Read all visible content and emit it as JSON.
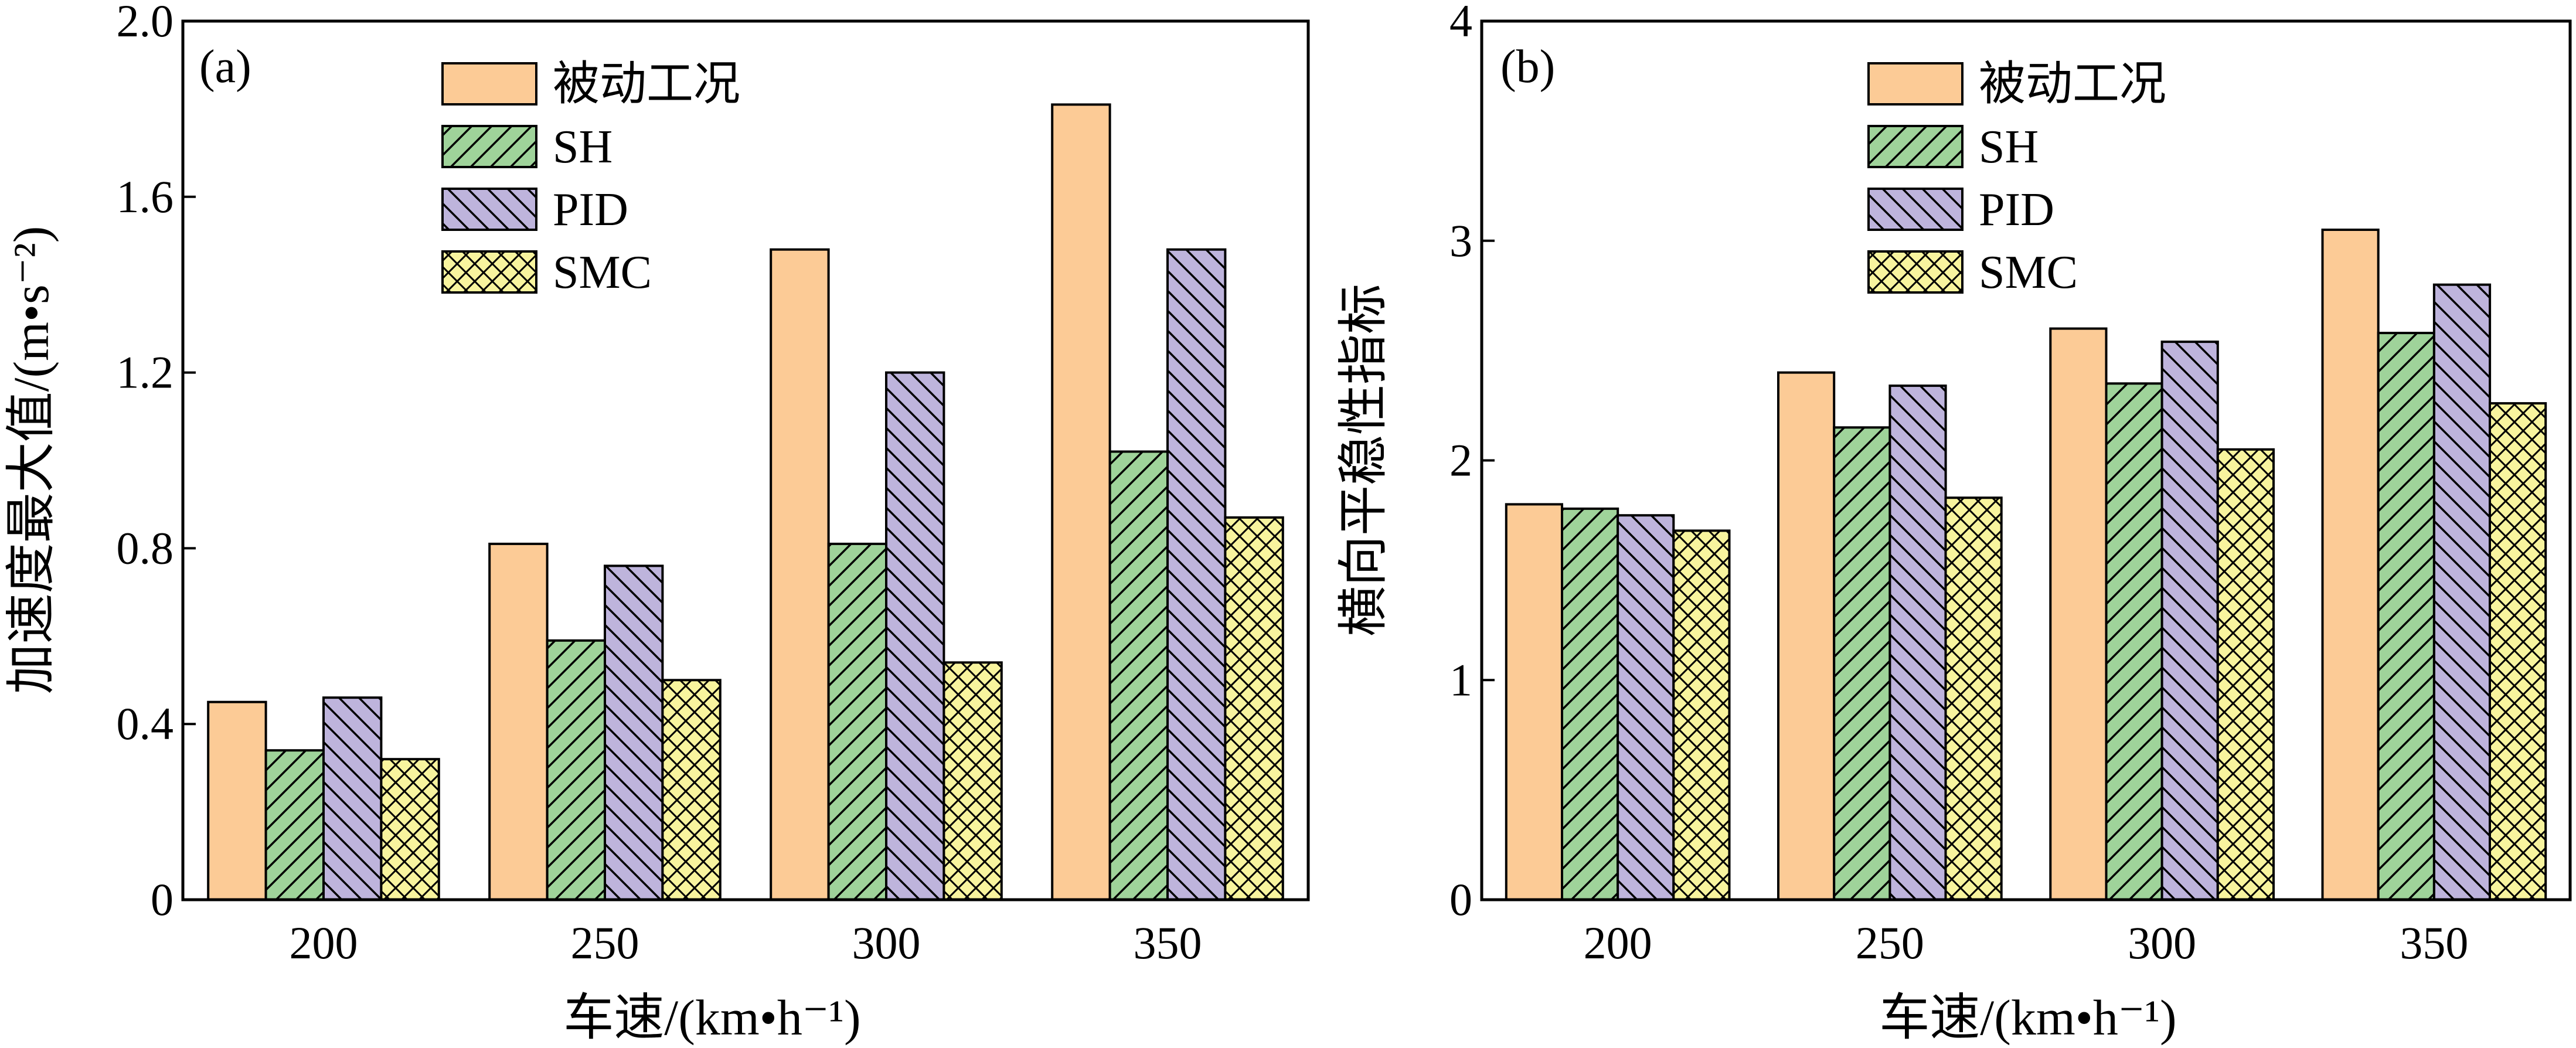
{
  "chart_data": [
    {
      "panel_label": "(a)",
      "type": "bar",
      "categories": [
        "200",
        "250",
        "300",
        "350"
      ],
      "xlabel": "车速/(km•h⁻¹)",
      "ylabel": "加速度最大值/(m•s⁻²)",
      "ylim": [
        0,
        2.0
      ],
      "yticks": [
        "0",
        "0.4",
        "0.8",
        "1.2",
        "1.6",
        "2.0"
      ],
      "ytick_values": [
        0,
        0.4,
        0.8,
        1.2,
        1.6,
        2.0
      ],
      "legend_position": "top-center",
      "series": [
        {
          "name": "被动工况",
          "values": [
            0.45,
            0.81,
            1.48,
            1.81
          ]
        },
        {
          "name": "SH",
          "values": [
            0.34,
            0.59,
            0.81,
            1.02
          ]
        },
        {
          "name": "PID",
          "values": [
            0.46,
            0.76,
            1.2,
            1.48
          ]
        },
        {
          "name": "SMC",
          "values": [
            0.32,
            0.5,
            0.54,
            0.87
          ]
        }
      ]
    },
    {
      "panel_label": "(b)",
      "type": "bar",
      "categories": [
        "200",
        "250",
        "300",
        "350"
      ],
      "xlabel": "车速/(km•h⁻¹)",
      "ylabel": "横向平稳性指标",
      "ylim": [
        0,
        4
      ],
      "yticks": [
        "0",
        "1",
        "2",
        "3",
        "4"
      ],
      "ytick_values": [
        0,
        1,
        2,
        3,
        4
      ],
      "legend_position": "top-center",
      "series": [
        {
          "name": "被动工况",
          "values": [
            1.8,
            2.4,
            2.6,
            3.05
          ]
        },
        {
          "name": "SH",
          "values": [
            1.78,
            2.15,
            2.35,
            2.58
          ]
        },
        {
          "name": "PID",
          "values": [
            1.75,
            2.34,
            2.54,
            2.8
          ]
        },
        {
          "name": "SMC",
          "values": [
            1.68,
            1.83,
            2.05,
            2.26
          ]
        }
      ]
    }
  ],
  "series_styles": [
    {
      "fill": "#FCCB96",
      "pattern": "solid"
    },
    {
      "fill": "#9FD39A",
      "pattern": "diag-up"
    },
    {
      "fill": "#BEB4DC",
      "pattern": "diag-down"
    },
    {
      "fill": "#F8F49E",
      "pattern": "cross"
    }
  ]
}
